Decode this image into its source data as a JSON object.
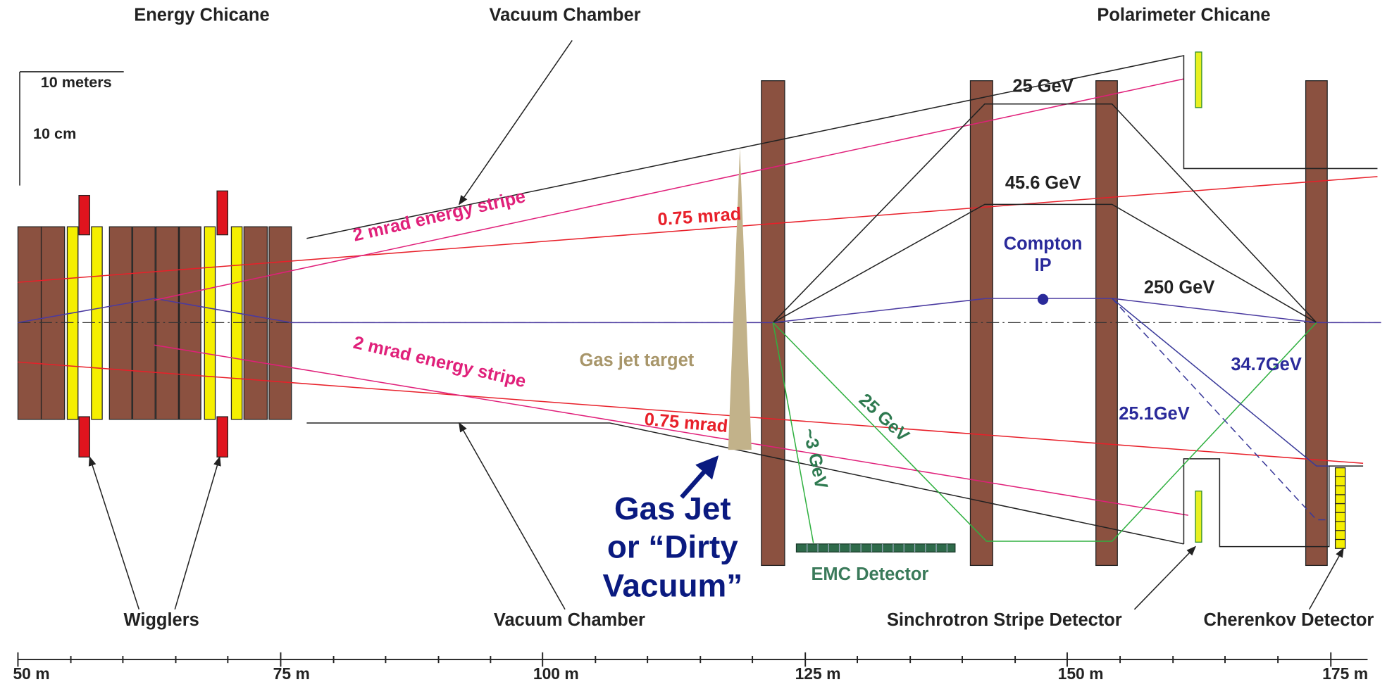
{
  "titles": {
    "energy_chicane": "Energy Chicane",
    "vacuum_chamber_top": "Vacuum Chamber",
    "polarimeter_chicane": "Polarimeter Chicane"
  },
  "scale": {
    "length": "10 meters",
    "width": "10 cm"
  },
  "beams": {
    "e25": "25 GeV",
    "e45": "45.6 GeV",
    "compton": "Compton",
    "ip": "IP",
    "e250": "250 GeV",
    "e34": "34.7GeV",
    "e25b": "25.1GeV",
    "stripe_up": "2 mrad energy stripe",
    "mrad_up": "0.75 mrad",
    "stripe_down": "2 mrad energy stripe",
    "mrad_down": "0.75 mrad",
    "green25": "25 GeV",
    "green3": "~3 GeV"
  },
  "gas": {
    "target": "Gas jet target",
    "line1": "Gas Jet",
    "line2": "or “Dirty",
    "line3": "Vacuum”"
  },
  "detectors": {
    "emc": "EMC Detector",
    "wigglers": "Wigglers",
    "vacuum_chamber_bottom": "Vacuum Chamber",
    "sinchrotron": "Sinchrotron Stripe Detector",
    "cherenkov": "Cherenkov Detector"
  },
  "axis": {
    "ticks": [
      "50 m",
      "75 m",
      "100 m",
      "125 m",
      "150 m",
      "175 m"
    ]
  }
}
